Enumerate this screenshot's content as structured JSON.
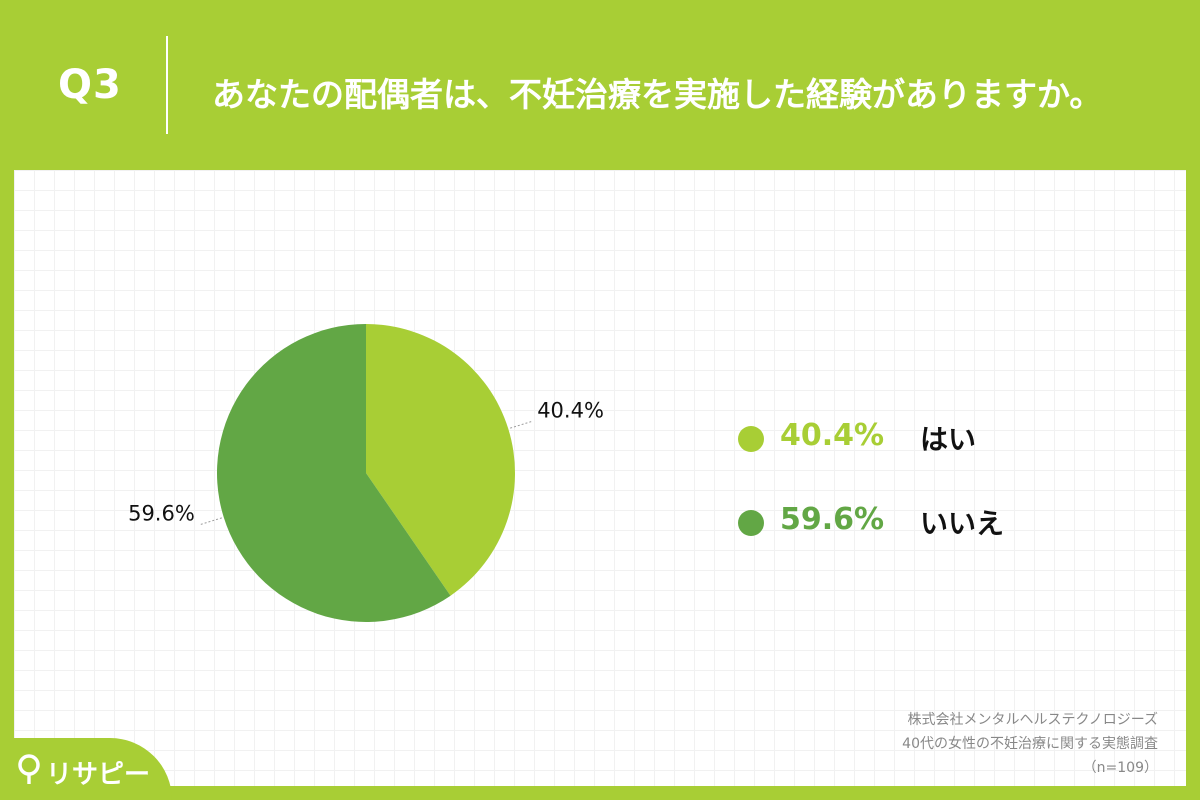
{
  "header": {
    "q_label": "Q3",
    "title": "あなたの配偶者は、不妊治療を実施した経験がありますか。"
  },
  "chart_data": {
    "type": "pie",
    "categories": [
      "はい",
      "いいえ"
    ],
    "values": [
      40.4,
      59.6
    ],
    "data_labels": [
      "40.4%",
      "59.6%"
    ],
    "colors": [
      "#a8ce35",
      "#62a745"
    ],
    "legend_placement": "right",
    "start_angle": "12 o'clock, clockwise"
  },
  "legend": [
    {
      "pct": "40.4%",
      "label": "はい",
      "color": "#a8ce35"
    },
    {
      "pct": "59.6%",
      "label": "いいえ",
      "color": "#62a745"
    }
  ],
  "source": {
    "line1": "株式会社メンタルヘルステクノロジーズ",
    "line2": "40代の女性の不妊治療に関する実態調査",
    "line3": "（n=109）"
  },
  "logo": {
    "text": "リサピー",
    "icon": "pin-icon"
  }
}
